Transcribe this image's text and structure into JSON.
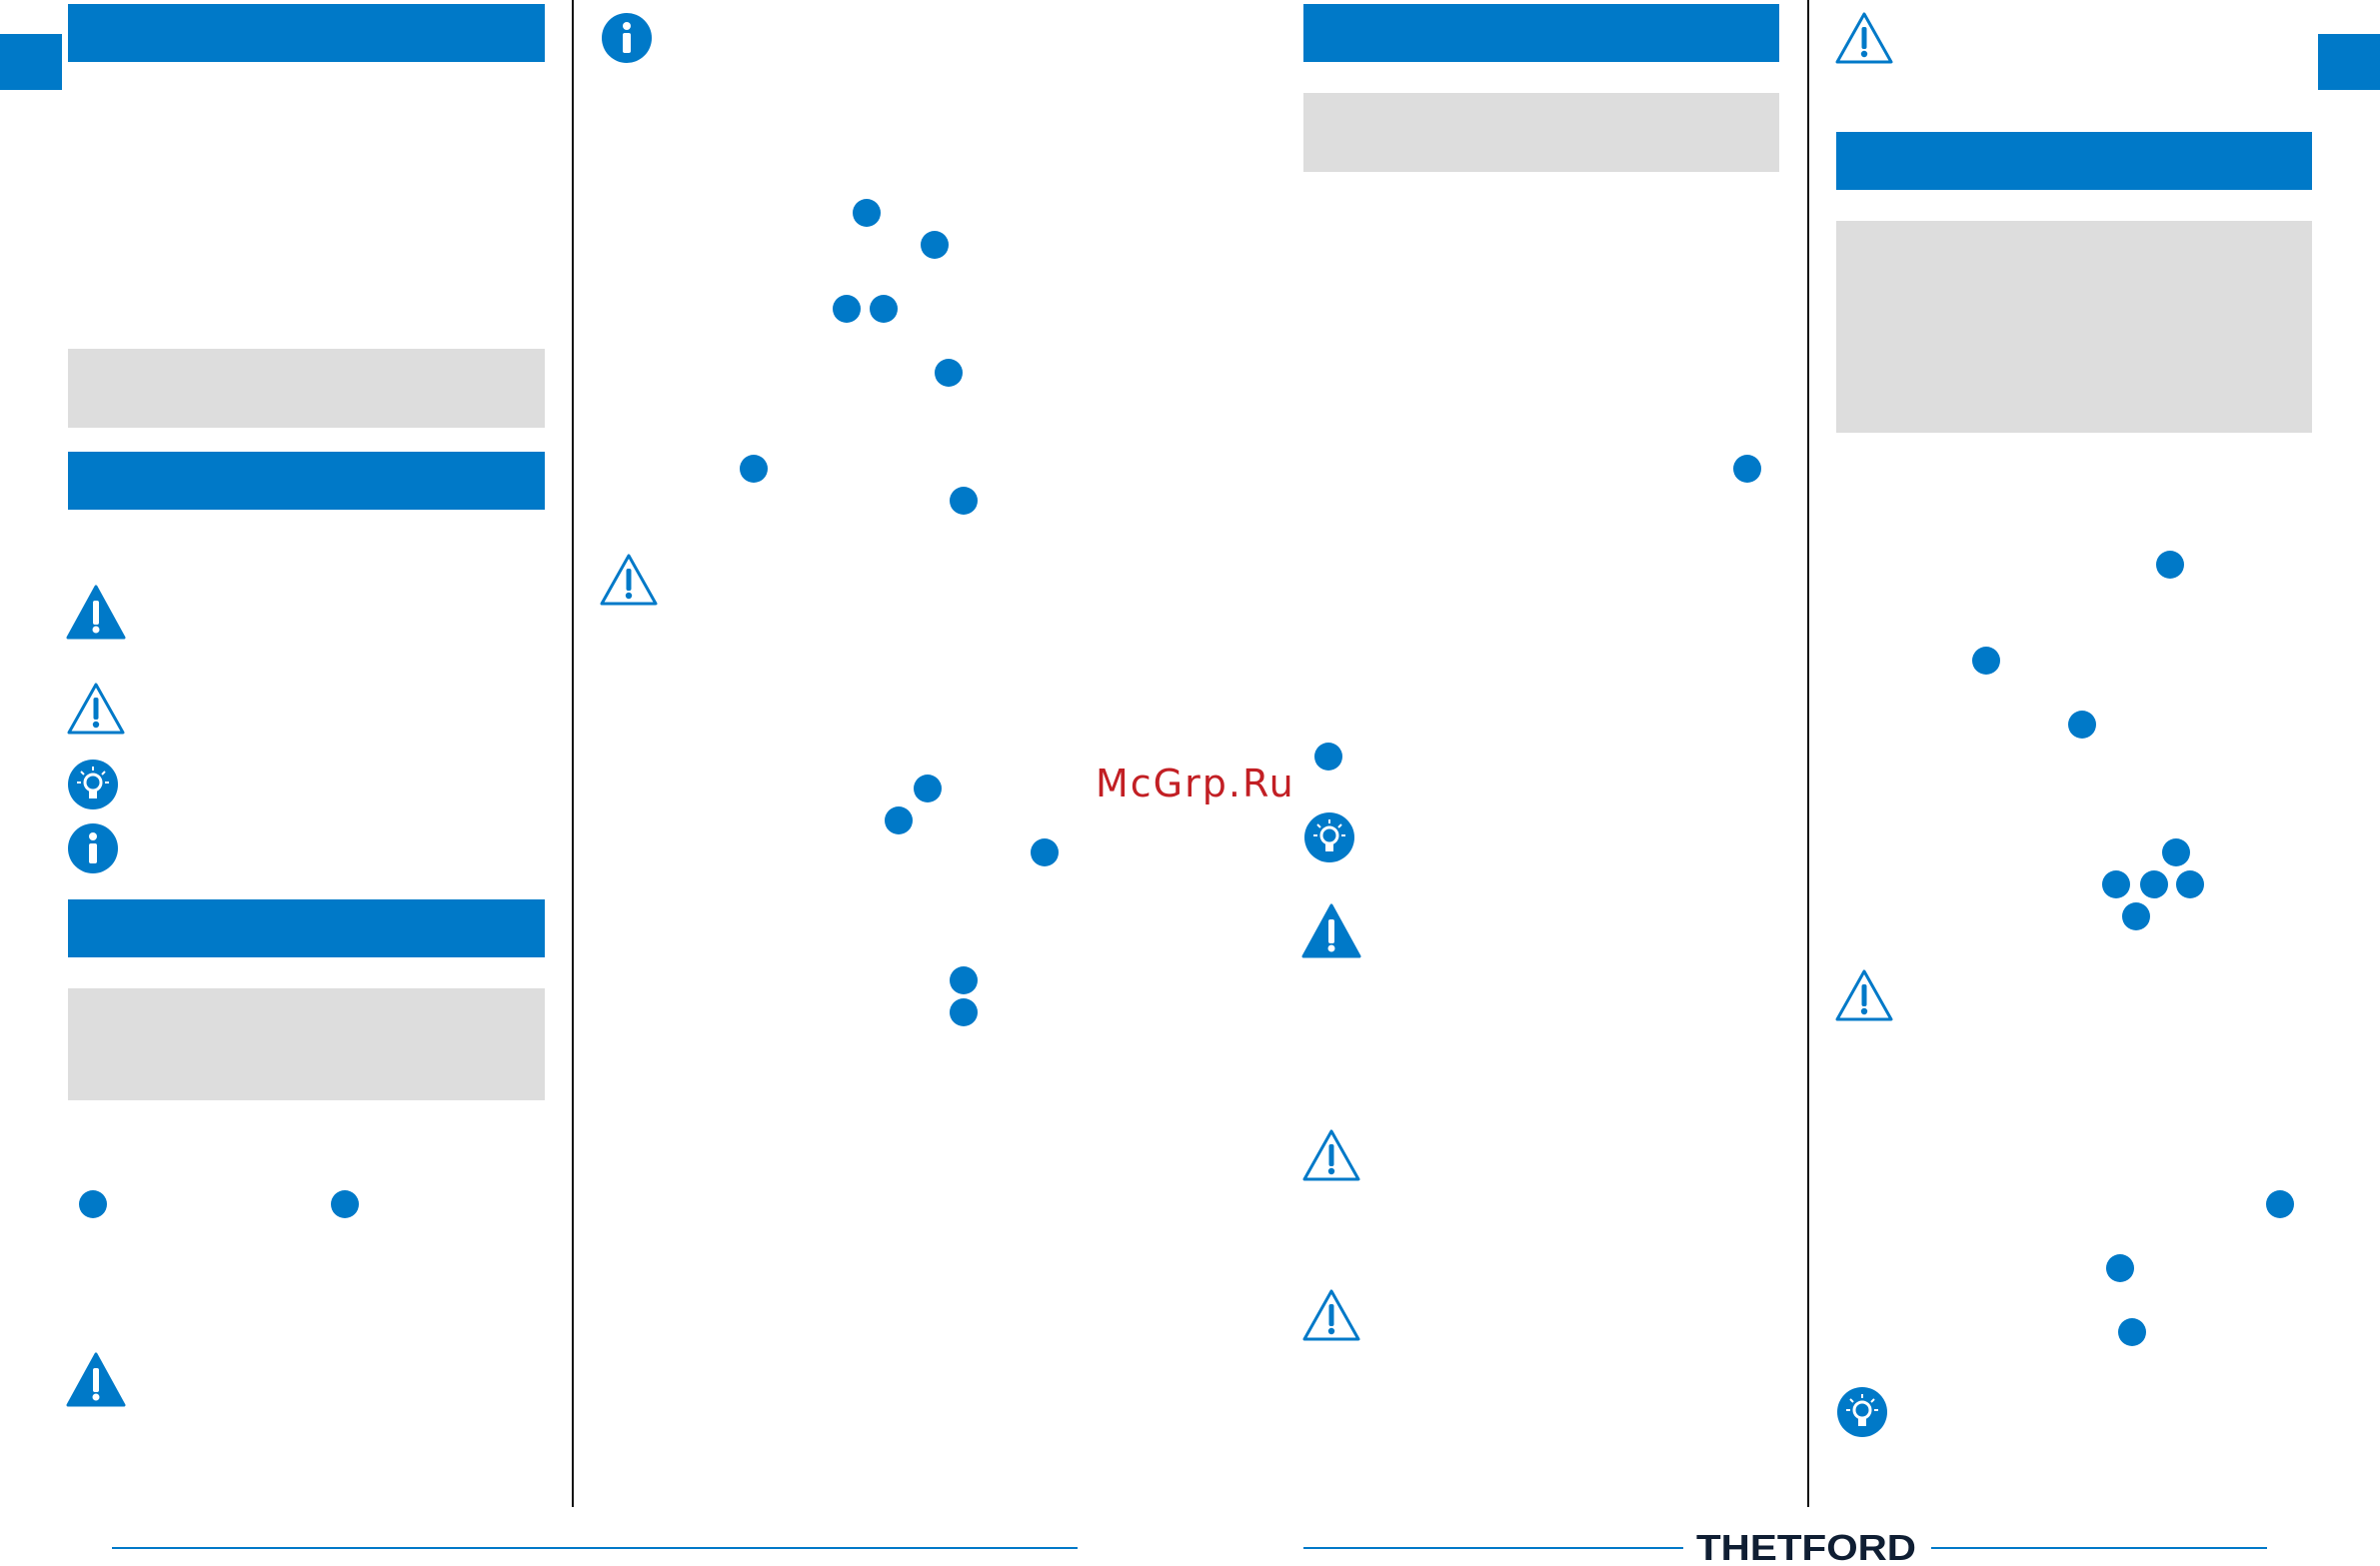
{
  "watermark": "McGrp.Ru",
  "logo": {
    "text": "THETFORD",
    "color": "#0f1e33"
  },
  "colors": {
    "accent": "#0079c8",
    "panel": "#dddddd",
    "background": "#ffffff"
  },
  "icons": {
    "warning_filled": "warning-filled-icon",
    "warning_outline": "warning-outline-icon",
    "tip": "lightbulb-icon",
    "info": "info-icon",
    "reference": "reference-dot-icon"
  }
}
